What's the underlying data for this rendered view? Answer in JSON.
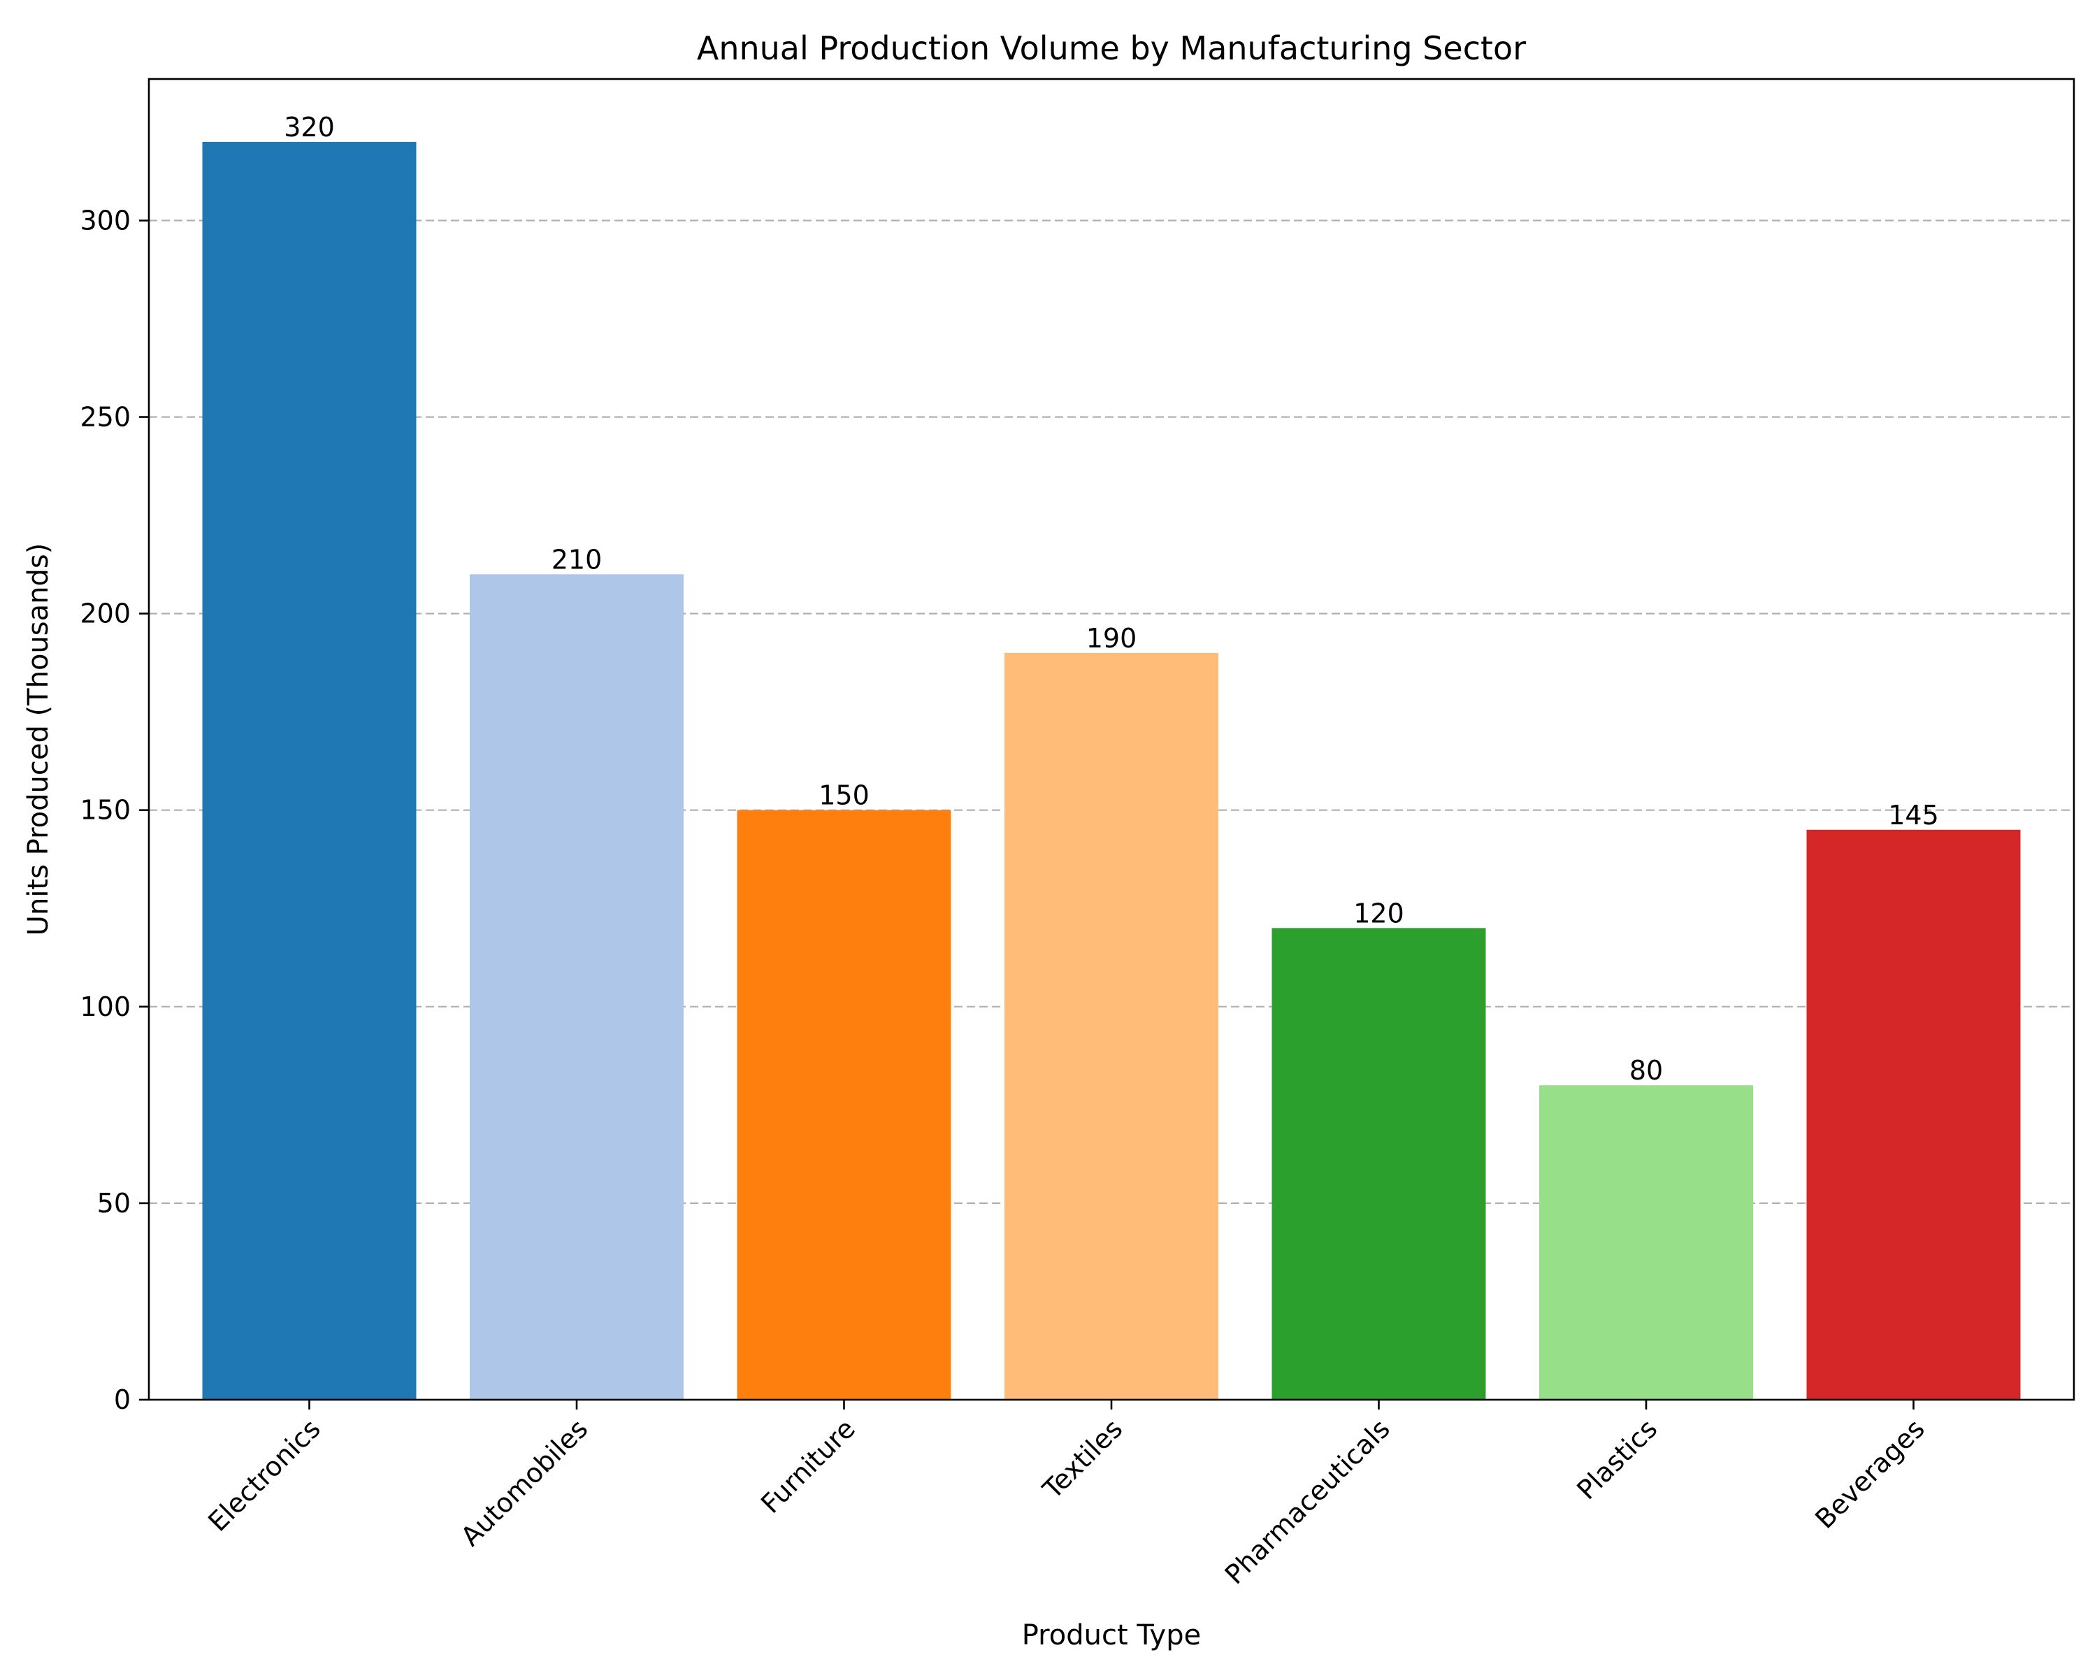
{
  "chart_data": {
    "type": "bar",
    "title": "Annual Production Volume by Manufacturing Sector",
    "xlabel": "Product Type",
    "ylabel": "Units Produced (Thousands)",
    "categories": [
      "Electronics",
      "Automobiles",
      "Furniture",
      "Textiles",
      "Pharmaceuticals",
      "Plastics",
      "Beverages"
    ],
    "values": [
      320,
      210,
      150,
      190,
      120,
      80,
      145
    ],
    "value_labels": [
      "320",
      "210",
      "150",
      "190",
      "120",
      "80",
      "145"
    ],
    "colors": [
      "#1f77b4",
      "#aec7e8",
      "#ff7f0e",
      "#ffbb78",
      "#2ca02c",
      "#98df8a",
      "#d62728"
    ],
    "ylim": [
      0,
      336
    ],
    "yticks": [
      0,
      50,
      100,
      150,
      200,
      250,
      300
    ],
    "ytick_labels": [
      "0",
      "50",
      "100",
      "150",
      "200",
      "250",
      "300"
    ],
    "grid": "y-axis dashed",
    "legend": "none"
  }
}
